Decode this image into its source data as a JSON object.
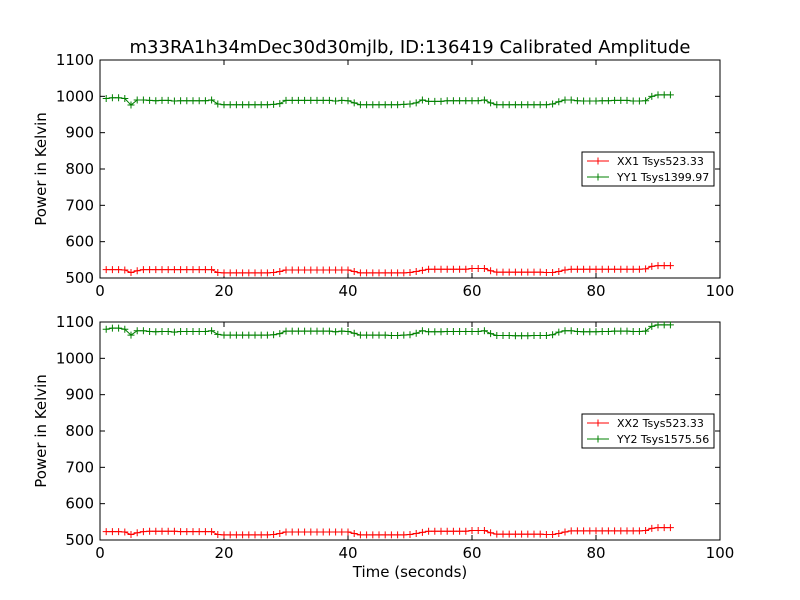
{
  "title": "m33RA1h34mDec30d30mjlb, ID:136419 Calibrated Amplitude",
  "xlabel": "Time (seconds)",
  "colors": {
    "xx": "#ff0000",
    "yy": "#008000"
  },
  "chart_data": [
    {
      "type": "line",
      "ylabel": "Power in Kelvin",
      "xlim": [
        0,
        100
      ],
      "ylim": [
        500,
        1100
      ],
      "xticks": [
        "0",
        "20",
        "40",
        "60",
        "80",
        "100"
      ],
      "yticks": [
        "500",
        "600",
        "700",
        "800",
        "900",
        "1000",
        "1100"
      ],
      "legend_position": "right",
      "x": [
        1,
        2,
        3,
        4,
        5,
        6,
        7,
        8,
        9,
        10,
        11,
        12,
        13,
        14,
        15,
        16,
        17,
        18,
        19,
        20,
        21,
        22,
        23,
        24,
        25,
        26,
        27,
        28,
        29,
        30,
        31,
        32,
        33,
        34,
        35,
        36,
        37,
        38,
        39,
        40,
        41,
        42,
        43,
        44,
        45,
        46,
        47,
        48,
        49,
        50,
        51,
        52,
        53,
        54,
        55,
        56,
        57,
        58,
        59,
        60,
        61,
        62,
        63,
        64,
        65,
        66,
        67,
        68,
        69,
        70,
        71,
        72,
        73,
        74,
        75,
        76,
        77,
        78,
        79,
        80,
        81,
        82,
        83,
        84,
        85,
        86,
        87,
        88,
        89,
        90,
        91,
        92
      ],
      "series": [
        {
          "name": "XX1 Tsys523.33",
          "color": "#ff0000",
          "values": [
            523,
            523,
            523,
            522,
            515,
            520,
            523,
            523,
            523,
            523,
            523,
            523,
            523,
            523,
            523,
            523,
            523,
            523,
            515,
            514,
            514,
            514,
            514,
            514,
            514,
            514,
            514,
            515,
            518,
            522,
            522,
            522,
            522,
            522,
            522,
            522,
            522,
            522,
            522,
            522,
            518,
            514,
            514,
            514,
            514,
            514,
            514,
            514,
            514,
            515,
            518,
            521,
            524,
            524,
            524,
            524,
            524,
            524,
            524,
            526,
            526,
            526,
            520,
            516,
            516,
            516,
            516,
            516,
            516,
            516,
            516,
            515,
            515,
            518,
            522,
            524,
            524,
            524,
            524,
            524,
            524,
            524,
            524,
            524,
            524,
            524,
            524,
            525,
            532,
            534,
            534,
            534
          ]
        },
        {
          "name": "YY1 Tsys1399.97",
          "color": "#008000",
          "values": [
            994,
            996,
            996,
            994,
            976,
            990,
            990,
            989,
            988,
            989,
            989,
            987,
            988,
            988,
            988,
            988,
            988,
            990,
            979,
            977,
            977,
            977,
            977,
            977,
            977,
            977,
            977,
            978,
            980,
            989,
            989,
            989,
            989,
            989,
            989,
            989,
            989,
            987,
            989,
            988,
            982,
            977,
            977,
            977,
            977,
            977,
            977,
            977,
            978,
            979,
            982,
            990,
            986,
            986,
            986,
            988,
            988,
            988,
            988,
            988,
            988,
            990,
            982,
            977,
            977,
            977,
            977,
            977,
            977,
            977,
            977,
            977,
            979,
            985,
            990,
            990,
            988,
            987,
            987,
            987,
            988,
            988,
            989,
            989,
            989,
            987,
            987,
            988,
            1000,
            1004,
            1004,
            1004
          ]
        }
      ]
    },
    {
      "type": "line",
      "ylabel": "Power in Kelvin",
      "xlim": [
        0,
        100
      ],
      "ylim": [
        500,
        1100
      ],
      "xticks": [
        "0",
        "20",
        "40",
        "60",
        "80",
        "100"
      ],
      "yticks": [
        "500",
        "600",
        "700",
        "800",
        "900",
        "1000",
        "1100"
      ],
      "legend_position": "right",
      "x": [
        1,
        2,
        3,
        4,
        5,
        6,
        7,
        8,
        9,
        10,
        11,
        12,
        13,
        14,
        15,
        16,
        17,
        18,
        19,
        20,
        21,
        22,
        23,
        24,
        25,
        26,
        27,
        28,
        29,
        30,
        31,
        32,
        33,
        34,
        35,
        36,
        37,
        38,
        39,
        40,
        41,
        42,
        43,
        44,
        45,
        46,
        47,
        48,
        49,
        50,
        51,
        52,
        53,
        54,
        55,
        56,
        57,
        58,
        59,
        60,
        61,
        62,
        63,
        64,
        65,
        66,
        67,
        68,
        69,
        70,
        71,
        72,
        73,
        74,
        75,
        76,
        77,
        78,
        79,
        80,
        81,
        82,
        83,
        84,
        85,
        86,
        87,
        88,
        89,
        90,
        91,
        92
      ],
      "series": [
        {
          "name": "XX2 Tsys523.33",
          "color": "#ff0000",
          "values": [
            523,
            523,
            523,
            522,
            515,
            520,
            523,
            524,
            524,
            524,
            524,
            524,
            523,
            523,
            523,
            523,
            523,
            523,
            515,
            514,
            514,
            514,
            514,
            514,
            514,
            514,
            514,
            515,
            518,
            522,
            522,
            522,
            522,
            522,
            522,
            522,
            522,
            522,
            522,
            522,
            518,
            514,
            514,
            514,
            514,
            514,
            514,
            514,
            514,
            515,
            518,
            521,
            524,
            524,
            524,
            524,
            524,
            524,
            524,
            526,
            526,
            526,
            520,
            516,
            516,
            516,
            516,
            516,
            516,
            516,
            516,
            515,
            515,
            518,
            522,
            525,
            525,
            525,
            525,
            525,
            525,
            525,
            525,
            525,
            525,
            525,
            525,
            526,
            532,
            534,
            534,
            534
          ]
        },
        {
          "name": "YY2 Tsys1575.56",
          "color": "#008000",
          "values": [
            1080,
            1083,
            1083,
            1080,
            1064,
            1076,
            1076,
            1074,
            1073,
            1074,
            1074,
            1072,
            1074,
            1074,
            1074,
            1074,
            1074,
            1076,
            1066,
            1064,
            1064,
            1064,
            1064,
            1064,
            1064,
            1064,
            1064,
            1065,
            1068,
            1075,
            1075,
            1075,
            1075,
            1075,
            1075,
            1075,
            1075,
            1073,
            1075,
            1074,
            1069,
            1064,
            1064,
            1064,
            1064,
            1064,
            1063,
            1063,
            1064,
            1065,
            1069,
            1076,
            1073,
            1073,
            1073,
            1074,
            1074,
            1074,
            1074,
            1074,
            1074,
            1076,
            1068,
            1063,
            1063,
            1063,
            1062,
            1062,
            1062,
            1063,
            1063,
            1063,
            1065,
            1072,
            1076,
            1076,
            1074,
            1073,
            1073,
            1073,
            1074,
            1074,
            1075,
            1075,
            1075,
            1074,
            1074,
            1075,
            1088,
            1092,
            1092,
            1092
          ]
        }
      ]
    }
  ]
}
